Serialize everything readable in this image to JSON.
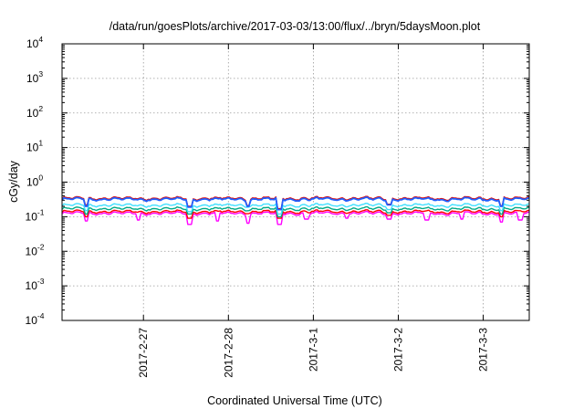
{
  "chart_data": {
    "type": "line",
    "title": "/data/run/goesPlots/archive/2017-03-03/13:00/flux/../bryn/5daysMoon.plot",
    "xlabel": "Coordinated Universal Time (UTC)",
    "ylabel": "cGy/day",
    "yscale": "log",
    "ylim": [
      0.0001,
      10000
    ],
    "y_ticks": [
      {
        "base": "10",
        "exp": "4",
        "value": 10000
      },
      {
        "base": "10",
        "exp": "3",
        "value": 1000
      },
      {
        "base": "10",
        "exp": "2",
        "value": 100
      },
      {
        "base": "10",
        "exp": "1",
        "value": 10
      },
      {
        "base": "10",
        "exp": "0",
        "value": 1
      },
      {
        "base": "10",
        "exp": "-1",
        "value": 0.1
      },
      {
        "base": "10",
        "exp": "-2",
        "value": 0.01
      },
      {
        "base": "10",
        "exp": "-3",
        "value": 0.001
      },
      {
        "base": "10",
        "exp": "-4",
        "value": 0.0001
      }
    ],
    "xlim": [
      "2017-02-26T01:00",
      "2017-03-03T13:00"
    ],
    "x_ticks": [
      {
        "label": "2017-2-27",
        "value": "2017-02-27T00:00"
      },
      {
        "label": "2017-2-28",
        "value": "2017-02-28T00:00"
      },
      {
        "label": "2017-3-1",
        "value": "2017-03-01T00:00"
      },
      {
        "label": "2017-3-2",
        "value": "2017-03-02T00:00"
      },
      {
        "label": "2017-3-3",
        "value": "2017-03-03T00:00"
      }
    ],
    "grid": true,
    "series": [
      {
        "color": "#ff00ff",
        "base": 0.125,
        "dips": [
          [
            "2017-02-26T08:00",
            0.075
          ],
          [
            "2017-02-26T22:30",
            0.08
          ],
          [
            "2017-02-27T13:00",
            0.06
          ],
          [
            "2017-02-27T21:00",
            0.075
          ],
          [
            "2017-02-28T05:30",
            0.065
          ],
          [
            "2017-02-28T14:30",
            0.06
          ],
          [
            "2017-02-28T22:00",
            0.085
          ],
          [
            "2017-03-01T09:30",
            0.09
          ],
          [
            "2017-03-01T21:30",
            0.085
          ],
          [
            "2017-03-02T08:00",
            0.08
          ],
          [
            "2017-03-02T18:00",
            0.085
          ],
          [
            "2017-03-03T05:00",
            0.07
          ],
          [
            "2017-03-03T10:30",
            0.08
          ]
        ]
      },
      {
        "color": "#ff0000",
        "base": 0.14,
        "dips": [
          [
            "2017-02-26T08:00",
            0.1
          ],
          [
            "2017-02-27T13:00",
            0.09
          ],
          [
            "2017-02-28T14:30",
            0.09
          ],
          [
            "2017-03-01T21:30",
            0.11
          ],
          [
            "2017-03-03T05:00",
            0.1
          ]
        ]
      },
      {
        "color": "#00aa88",
        "base": 0.17,
        "dips": [
          [
            "2017-02-26T08:00",
            0.12
          ],
          [
            "2017-02-27T13:00",
            0.12
          ],
          [
            "2017-02-28T14:30",
            0.1
          ],
          [
            "2017-03-01T21:30",
            0.13
          ],
          [
            "2017-03-03T05:00",
            0.12
          ]
        ]
      },
      {
        "color": "#40e0ff",
        "base": 0.215,
        "dips": [
          [
            "2017-02-26T08:00",
            0.15
          ],
          [
            "2017-02-27T13:00",
            0.14
          ],
          [
            "2017-02-28T14:30",
            0.12
          ],
          [
            "2017-03-01T21:30",
            0.16
          ],
          [
            "2017-03-03T05:00",
            0.15
          ]
        ]
      },
      {
        "color": "#dd0000",
        "base": 0.34,
        "dips": [
          [
            "2017-02-26T08:00",
            0.22
          ],
          [
            "2017-02-27T13:00",
            0.2
          ],
          [
            "2017-02-28T05:30",
            0.21
          ],
          [
            "2017-02-28T14:30",
            0.17
          ],
          [
            "2017-03-01T21:30",
            0.23
          ],
          [
            "2017-03-03T05:00",
            0.21
          ]
        ]
      },
      {
        "color": "#2060ff",
        "base": 0.32,
        "dips": [
          [
            "2017-02-26T08:00",
            0.2
          ],
          [
            "2017-02-27T13:00",
            0.19
          ],
          [
            "2017-02-28T05:30",
            0.2
          ],
          [
            "2017-02-28T14:30",
            0.16
          ],
          [
            "2017-03-01T21:30",
            0.22
          ],
          [
            "2017-03-03T05:00",
            0.2
          ]
        ]
      }
    ]
  }
}
